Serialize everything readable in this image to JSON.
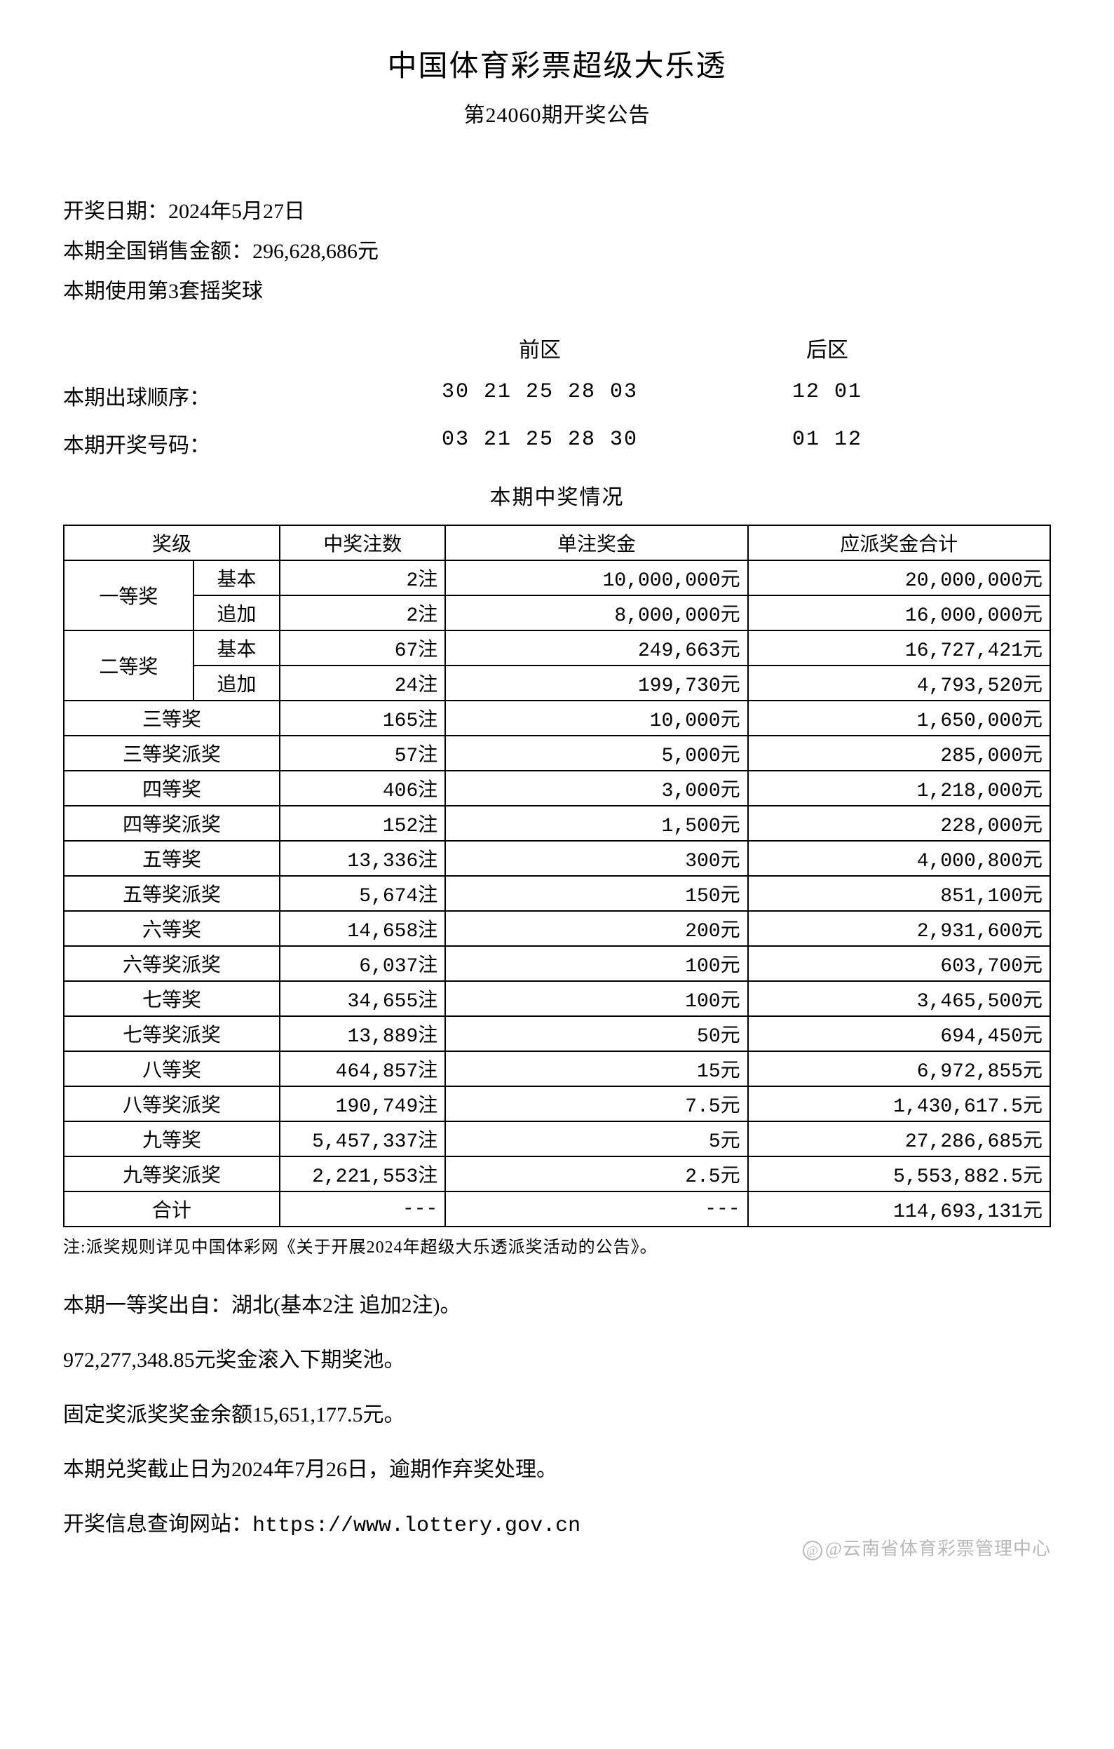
{
  "header": {
    "title": "中国体育彩票超级大乐透",
    "subtitle": "第24060期开奖公告"
  },
  "info": {
    "draw_date_label": "开奖日期：",
    "draw_date": "2024年5月27日",
    "sales_label": "本期全国销售金额：",
    "sales_amount": "296,628,686元",
    "ball_set_label": "本期使用第3套摇奖球"
  },
  "numbers": {
    "front_label": "前区",
    "back_label": "后区",
    "draw_order_label": "本期出球顺序：",
    "draw_order_front": "30 21 25 28 03",
    "draw_order_back": "12 01",
    "winning_label": "本期开奖号码：",
    "winning_front": "03 21 25 28 30",
    "winning_back": "01 12"
  },
  "prize_table": {
    "title": "本期中奖情况",
    "columns": {
      "level": "奖级",
      "count": "中奖注数",
      "amount": "单注奖金",
      "total": "应派奖金合计"
    },
    "first_prize_label": "一等奖",
    "second_prize_label": "二等奖",
    "basic_label": "基本",
    "extra_label": "追加",
    "rows": [
      {
        "level": "一等奖-基本",
        "count": "2注",
        "amount": "10,000,000元",
        "total": "20,000,000元"
      },
      {
        "level": "一等奖-追加",
        "count": "2注",
        "amount": "8,000,000元",
        "total": "16,000,000元"
      },
      {
        "level": "二等奖-基本",
        "count": "67注",
        "amount": "249,663元",
        "total": "16,727,421元"
      },
      {
        "level": "二等奖-追加",
        "count": "24注",
        "amount": "199,730元",
        "total": "4,793,520元"
      },
      {
        "level": "三等奖",
        "count": "165注",
        "amount": "10,000元",
        "total": "1,650,000元"
      },
      {
        "level": "三等奖派奖",
        "count": "57注",
        "amount": "5,000元",
        "total": "285,000元"
      },
      {
        "level": "四等奖",
        "count": "406注",
        "amount": "3,000元",
        "total": "1,218,000元"
      },
      {
        "level": "四等奖派奖",
        "count": "152注",
        "amount": "1,500元",
        "total": "228,000元"
      },
      {
        "level": "五等奖",
        "count": "13,336注",
        "amount": "300元",
        "total": "4,000,800元"
      },
      {
        "level": "五等奖派奖",
        "count": "5,674注",
        "amount": "150元",
        "total": "851,100元"
      },
      {
        "level": "六等奖",
        "count": "14,658注",
        "amount": "200元",
        "total": "2,931,600元"
      },
      {
        "level": "六等奖派奖",
        "count": "6,037注",
        "amount": "100元",
        "total": "603,700元"
      },
      {
        "level": "七等奖",
        "count": "34,655注",
        "amount": "100元",
        "total": "3,465,500元"
      },
      {
        "level": "七等奖派奖",
        "count": "13,889注",
        "amount": "50元",
        "total": "694,450元"
      },
      {
        "level": "八等奖",
        "count": "464,857注",
        "amount": "15元",
        "total": "6,972,855元"
      },
      {
        "level": "八等奖派奖",
        "count": "190,749注",
        "amount": "7.5元",
        "total": "1,430,617.5元"
      },
      {
        "level": "九等奖",
        "count": "5,457,337注",
        "amount": "5元",
        "total": "27,286,685元"
      },
      {
        "level": "九等奖派奖",
        "count": "2,221,553注",
        "amount": "2.5元",
        "total": "5,553,882.5元"
      },
      {
        "level": "合计",
        "count": "---",
        "amount": "---",
        "total": "114,693,131元"
      }
    ]
  },
  "footnote": "注:派奖规则详见中国体彩网《关于开展2024年超级大乐透派奖活动的公告》。",
  "footer": {
    "winner_origin": "本期一等奖出自：湖北(基本2注 追加2注)。",
    "rollover": "972,277,348.85元奖金滚入下期奖池。",
    "fixed_prize_balance": "固定奖派奖奖金余额15,651,177.5元。",
    "claim_deadline": "本期兑奖截止日为2024年7月26日，逾期作弃奖处理。",
    "website_label": "开奖信息查询网站：",
    "website_url": "https://www.lottery.gov.cn"
  },
  "watermark": "@云南省体育彩票管理中心"
}
